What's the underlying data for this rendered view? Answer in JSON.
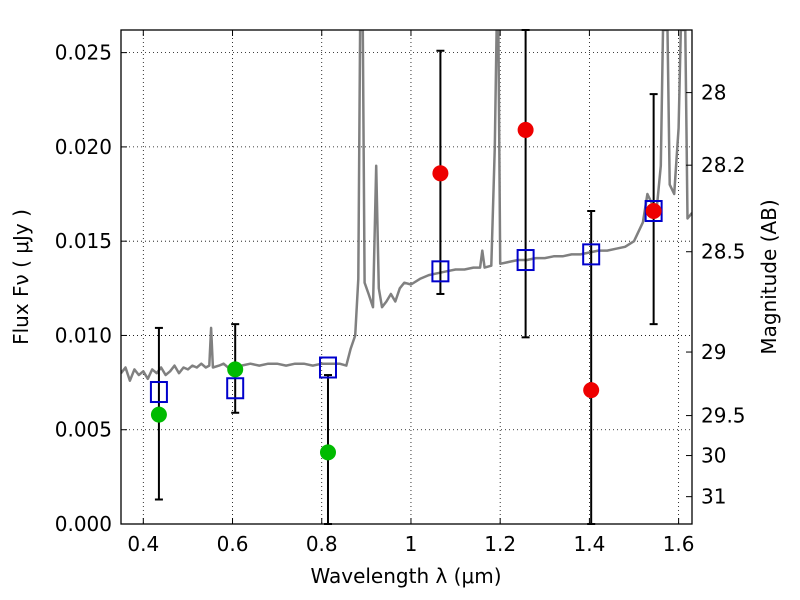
{
  "chart_data": {
    "type": "scatter",
    "xlabel": "Wavelength  λ (μm)",
    "ylabel": "Flux  Fν  ( μJy )",
    "y2label": "Magnitude (AB)",
    "xlim": [
      0.35,
      1.63
    ],
    "ylim": [
      0.0,
      0.0262
    ],
    "grid": true,
    "x_ticks": [
      0.4,
      0.6,
      0.8,
      1.0,
      1.2,
      1.4,
      1.6
    ],
    "x_tick_labels": [
      "0.4",
      "0.6",
      "0.8",
      "1",
      "1.2",
      "1.4",
      "1.6"
    ],
    "y_ticks": [
      0.0,
      0.005,
      0.01,
      0.015,
      0.02,
      0.025
    ],
    "y_tick_labels": [
      "0.000",
      "0.005",
      "0.010",
      "0.015",
      "0.020",
      "0.025"
    ],
    "y2_ticks": [
      {
        "label": "28",
        "flux": 0.02288
      },
      {
        "label": "28.2",
        "flux": 0.01903
      },
      {
        "label": "28.5",
        "flux": 0.01444
      },
      {
        "label": "29",
        "flux": 0.00912
      },
      {
        "label": "29.5",
        "flux": 0.00575
      },
      {
        "label": "30",
        "flux": 0.00363
      },
      {
        "label": "31",
        "flux": 0.00145
      }
    ],
    "colors": {
      "green": "#00bb00",
      "red": "#ee0000",
      "model": "#808080",
      "square": "#0000cc",
      "errorbar": "#000000"
    },
    "series": [
      {
        "marker": "circle",
        "color": "#00bb00",
        "points": [
          {
            "x": 0.435,
            "y": 0.0058,
            "err_low": 0.0013,
            "err_high": 0.0104
          },
          {
            "x": 0.606,
            "y": 0.0082,
            "err_low": 0.0059,
            "err_high": 0.0106
          },
          {
            "x": 0.814,
            "y": 0.0038,
            "err_low": 0.0,
            "err_high": 0.0079
          }
        ]
      },
      {
        "marker": "circle",
        "color": "#ee0000",
        "points": [
          {
            "x": 1.066,
            "y": 0.0186,
            "err_low": 0.0122,
            "err_high": 0.0251
          },
          {
            "x": 1.257,
            "y": 0.0209,
            "err_low": 0.0099,
            "err_high": 0.0262
          },
          {
            "x": 1.404,
            "y": 0.0071,
            "err_low": 0.0,
            "err_high": 0.0166
          },
          {
            "x": 1.544,
            "y": 0.0166,
            "err_low": 0.0106,
            "err_high": 0.0228
          }
        ]
      },
      {
        "marker": "open-square",
        "color": "#0000cc",
        "points": [
          {
            "x": 0.435,
            "y": 0.007
          },
          {
            "x": 0.606,
            "y": 0.0072
          },
          {
            "x": 0.814,
            "y": 0.0083
          },
          {
            "x": 1.066,
            "y": 0.0134
          },
          {
            "x": 1.257,
            "y": 0.014
          },
          {
            "x": 1.404,
            "y": 0.0143
          },
          {
            "x": 1.544,
            "y": 0.0166
          }
        ]
      },
      {
        "marker": "line",
        "color": "#808080",
        "points": [
          [
            0.35,
            0.008
          ],
          [
            0.36,
            0.0083
          ],
          [
            0.37,
            0.0076
          ],
          [
            0.38,
            0.0082
          ],
          [
            0.39,
            0.0079
          ],
          [
            0.4,
            0.0081
          ],
          [
            0.41,
            0.0077
          ],
          [
            0.42,
            0.0082
          ],
          [
            0.43,
            0.008
          ],
          [
            0.44,
            0.0083
          ],
          [
            0.45,
            0.0079
          ],
          [
            0.46,
            0.0081
          ],
          [
            0.47,
            0.0084
          ],
          [
            0.48,
            0.008
          ],
          [
            0.49,
            0.0083
          ],
          [
            0.5,
            0.0082
          ],
          [
            0.51,
            0.0084
          ],
          [
            0.52,
            0.0083
          ],
          [
            0.53,
            0.0085
          ],
          [
            0.54,
            0.0083
          ],
          [
            0.548,
            0.0084
          ],
          [
            0.552,
            0.0104
          ],
          [
            0.556,
            0.0083
          ],
          [
            0.57,
            0.0084
          ],
          [
            0.58,
            0.0085
          ],
          [
            0.59,
            0.0083
          ],
          [
            0.6,
            0.0084
          ],
          [
            0.62,
            0.0084
          ],
          [
            0.64,
            0.0085
          ],
          [
            0.66,
            0.0084
          ],
          [
            0.68,
            0.0085
          ],
          [
            0.7,
            0.0085
          ],
          [
            0.72,
            0.0084
          ],
          [
            0.74,
            0.0085
          ],
          [
            0.76,
            0.0085
          ],
          [
            0.78,
            0.0084
          ],
          [
            0.8,
            0.0085
          ],
          [
            0.82,
            0.0085
          ],
          [
            0.84,
            0.0085
          ],
          [
            0.855,
            0.0084
          ],
          [
            0.865,
            0.0093
          ],
          [
            0.875,
            0.01
          ],
          [
            0.882,
            0.013
          ],
          [
            0.886,
            0.0262
          ],
          [
            0.892,
            0.0262
          ],
          [
            0.896,
            0.0128
          ],
          [
            0.905,
            0.0122
          ],
          [
            0.915,
            0.0115
          ],
          [
            0.922,
            0.019
          ],
          [
            0.928,
            0.0125
          ],
          [
            0.935,
            0.0115
          ],
          [
            0.945,
            0.0118
          ],
          [
            0.955,
            0.0122
          ],
          [
            0.965,
            0.0118
          ],
          [
            0.975,
            0.0125
          ],
          [
            0.985,
            0.0128
          ],
          [
            1.0,
            0.0127
          ],
          [
            1.02,
            0.013
          ],
          [
            1.04,
            0.0132
          ],
          [
            1.06,
            0.0133
          ],
          [
            1.08,
            0.0134
          ],
          [
            1.1,
            0.0135
          ],
          [
            1.12,
            0.0135
          ],
          [
            1.14,
            0.0136
          ],
          [
            1.155,
            0.0136
          ],
          [
            1.16,
            0.0145
          ],
          [
            1.165,
            0.0136
          ],
          [
            1.18,
            0.0137
          ],
          [
            1.188,
            0.02
          ],
          [
            1.192,
            0.0262
          ],
          [
            1.196,
            0.0262
          ],
          [
            1.2,
            0.0138
          ],
          [
            1.22,
            0.0139
          ],
          [
            1.24,
            0.014
          ],
          [
            1.26,
            0.014
          ],
          [
            1.28,
            0.0141
          ],
          [
            1.3,
            0.0141
          ],
          [
            1.32,
            0.0142
          ],
          [
            1.34,
            0.0142
          ],
          [
            1.36,
            0.0143
          ],
          [
            1.38,
            0.0143
          ],
          [
            1.4,
            0.0144
          ],
          [
            1.42,
            0.0145
          ],
          [
            1.44,
            0.0145
          ],
          [
            1.46,
            0.0146
          ],
          [
            1.48,
            0.0147
          ],
          [
            1.5,
            0.015
          ],
          [
            1.52,
            0.016
          ],
          [
            1.53,
            0.0175
          ],
          [
            1.54,
            0.017
          ],
          [
            1.55,
            0.0165
          ],
          [
            1.56,
            0.019
          ],
          [
            1.565,
            0.0262
          ],
          [
            1.575,
            0.0262
          ],
          [
            1.58,
            0.018
          ],
          [
            1.59,
            0.0175
          ],
          [
            1.6,
            0.021
          ],
          [
            1.605,
            0.0262
          ],
          [
            1.615,
            0.0262
          ],
          [
            1.62,
            0.0162
          ],
          [
            1.63,
            0.0165
          ]
        ]
      }
    ]
  }
}
